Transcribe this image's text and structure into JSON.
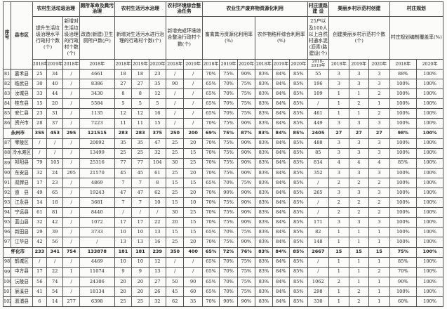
{
  "header": {
    "seq": "序号",
    "county": "县市区",
    "groups": [
      {
        "label": "农村生活垃圾治理"
      },
      {
        "label": "厕所革命及粪污治理"
      },
      {
        "label": "农村生活污水治理"
      },
      {
        "label": "农村环境综合整治任务"
      },
      {
        "label": "农业生产废弃物资源化利用"
      },
      {
        "label": "村庄道路建 设"
      },
      {
        "label": "美丽乡村示范村创建"
      },
      {
        "label": "村庄规划"
      }
    ],
    "subs": [
      {
        "label": "提升生活垃圾治理水平行政村个数(个)"
      },
      {
        "label": "新增对生活垃圾治理的行政村个数(个)"
      },
      {
        "label": "改造(新建)卫生厕所户数(户)"
      },
      {
        "label": "新增对生活污水进行治理的行政村个数(个)"
      },
      {
        "label": "新增完成环境综合整治行政村个数(个)"
      },
      {
        "label": "畜禽粪污资源化利用率(%)"
      },
      {
        "label": "农作物秸秆综合利用率(%)"
      },
      {
        "label": "25户以及100人以上自然村通水泥(沥青)路建设(个)"
      },
      {
        "label": "创建美丽乡村示范村个数(个)"
      },
      {
        "label": "村庄规划编制覆盖率(%)"
      }
    ],
    "years": [
      "2018年",
      "2019年",
      "2018年",
      "2018年",
      "2018年",
      "2019年",
      "2020年",
      "2018年",
      "2019年",
      "2018年",
      "2019年",
      "2020年",
      "2018年",
      "2019年",
      "2020年",
      "2018–2019年",
      "2018年",
      "2019年",
      "2020年",
      "2018年",
      "2020年"
    ]
  },
  "rows": [
    {
      "seq": "81",
      "name": "嘉禾县",
      "total": false,
      "v": [
        "25",
        "34",
        "/",
        "4661",
        "18",
        "18",
        "23",
        "/",
        "/",
        "70%",
        "75%",
        "90%",
        "83%",
        "84%",
        "85%",
        "55",
        "3",
        "3",
        "3",
        "88%",
        "100%"
      ]
    },
    {
      "seq": "82",
      "name": "临武县",
      "total": false,
      "v": [
        "30",
        "40",
        "/",
        "8386",
        "27",
        "27",
        "35",
        "90",
        "/",
        "65%",
        "70%",
        "75%",
        "83%",
        "84%",
        "85%",
        "196",
        "3",
        "3",
        "3",
        "100%",
        "100%"
      ]
    },
    {
      "seq": "83",
      "name": "汝城县",
      "total": false,
      "v": [
        "33",
        "44",
        "/",
        "3430",
        "8",
        "8",
        "12",
        "/",
        "/",
        "65%",
        "70%",
        "75%",
        "83%",
        "84%",
        "85%",
        "109",
        "1",
        "1",
        "2",
        "100%",
        "100%"
      ]
    },
    {
      "seq": "84",
      "name": "桂东县",
      "total": false,
      "v": [
        "15",
        "20",
        "/",
        "5584",
        "5",
        "5",
        "5",
        "/",
        "/",
        "65%",
        "70%",
        "75%",
        "83%",
        "84%",
        "85%",
        "/",
        "1",
        "2",
        "1",
        "100%",
        "100%"
      ]
    },
    {
      "seq": "85",
      "name": "安仁县",
      "total": false,
      "v": [
        "23",
        "31",
        "/",
        "1135",
        "12",
        "12",
        "16",
        "/",
        "/",
        "65%",
        "70%",
        "75%",
        "83%",
        "84%",
        "85%",
        "461",
        "1",
        "1",
        "2",
        "100%",
        "100%"
      ]
    },
    {
      "seq": "86",
      "name": "资兴市",
      "total": false,
      "v": [
        "28",
        "37",
        "/",
        "7223",
        "11",
        "11",
        "15",
        "/",
        "/",
        "70%",
        "75%",
        "90%",
        "83%",
        "84%",
        "85%",
        "449",
        "3",
        "3",
        "3",
        "100%",
        "100%"
      ]
    },
    {
      "seq": "",
      "name": "永州市",
      "total": true,
      "v": [
        "355",
        "453",
        "295",
        "121515",
        "283",
        "283",
        "375",
        "250",
        "200",
        "69%",
        "75%",
        "87%",
        "83%",
        "84%",
        "85%",
        "2405",
        "27",
        "27",
        "27",
        "98%",
        "100%"
      ]
    },
    {
      "seq": "87",
      "name": "零陵区",
      "total": false,
      "v": [
        "/",
        "/",
        "/",
        "20092",
        "35",
        "35",
        "47",
        "25",
        "20",
        "70%",
        "75%",
        "90%",
        "83%",
        "84%",
        "85%",
        "488",
        "3",
        "3",
        "3",
        "100%",
        "100%"
      ]
    },
    {
      "seq": "88",
      "name": "冷水滩区",
      "total": false,
      "v": [
        "/",
        "/",
        "/",
        "13499",
        "25",
        "25",
        "32",
        "25",
        "15",
        "70%",
        "75%",
        "90%",
        "83%",
        "84%",
        "85%",
        "85",
        "3",
        "3",
        "3",
        "100%",
        "100%"
      ]
    },
    {
      "seq": "89",
      "name": "祁阳县",
      "total": false,
      "v": [
        "79",
        "105",
        "/",
        "25316",
        "77",
        "77",
        "104",
        "30",
        "25",
        "70%",
        "75%",
        "90%",
        "83%",
        "84%",
        "85%",
        "814",
        "4",
        "4",
        "4",
        "85%",
        "100%"
      ]
    },
    {
      "seq": "90",
      "name": "东安县",
      "total": false,
      "v": [
        "32",
        "24",
        "295",
        "21570",
        "45",
        "45",
        "61",
        "25",
        "20",
        "70%",
        "75%",
        "90%",
        "83%",
        "84%",
        "85%",
        "352",
        "3",
        "3",
        "3",
        "100%",
        "100%"
      ]
    },
    {
      "seq": "91",
      "name": "双牌县",
      "total": false,
      "v": [
        "17",
        "23",
        "/",
        "4869",
        "7",
        "7",
        "8",
        "15",
        "15",
        "65%",
        "70%",
        "75%",
        "83%",
        "84%",
        "85%",
        "/",
        "2",
        "2",
        "2",
        "100%",
        "100%"
      ]
    },
    {
      "seq": "92",
      "name": "道　县",
      "total": false,
      "v": [
        "49",
        "65",
        "/",
        "19243",
        "47",
        "47",
        "62",
        "25",
        "20",
        "70%",
        "90%",
        "90%",
        "83%",
        "84%",
        "85%",
        "265",
        "3",
        "3",
        "3",
        "100%",
        "100%"
      ]
    },
    {
      "seq": "93",
      "name": "江永县",
      "total": false,
      "v": [
        "14",
        "18",
        "/",
        "3681",
        "7",
        "7",
        "10",
        "15",
        "10",
        "70%",
        "75%",
        "90%",
        "83%",
        "84%",
        "85%",
        "/",
        "2",
        "2",
        "2",
        "100%",
        "100%"
      ]
    },
    {
      "seq": "94",
      "name": "宁远县",
      "total": false,
      "v": [
        "61",
        "81",
        "/",
        "8440",
        "/",
        "/",
        "/",
        "30",
        "25",
        "70%",
        "75%",
        "90%",
        "83%",
        "84%",
        "85%",
        "/",
        "2",
        "2",
        "2",
        "100%",
        "100%"
      ]
    },
    {
      "seq": "95",
      "name": "蓝山县",
      "total": false,
      "v": [
        "32",
        "42",
        "/",
        "1072",
        "17",
        "17",
        "22",
        "20",
        "15",
        "70%",
        "75%",
        "90%",
        "83%",
        "84%",
        "85%",
        "171",
        "3",
        "3",
        "3",
        "100%",
        "100%"
      ]
    },
    {
      "seq": "96",
      "name": "新田县",
      "total": false,
      "v": [
        "29",
        "39",
        "/",
        "3733",
        "10",
        "10",
        "13",
        "15",
        "15",
        "65%",
        "70%",
        "75%",
        "83%",
        "84%",
        "85%",
        "82",
        "1",
        "1",
        "1",
        "100%",
        "100%"
      ]
    },
    {
      "seq": "97",
      "name": "江华县",
      "total": false,
      "v": [
        "42",
        "56",
        "/",
        "/",
        "13",
        "13",
        "16",
        "25",
        "20",
        "70%",
        "75%",
        "90%",
        "83%",
        "84%",
        "85%",
        "148",
        "1",
        "1",
        "1",
        "100%",
        "100%"
      ]
    },
    {
      "seq": "",
      "name": "怀化市",
      "total": true,
      "v": [
        "233",
        "341",
        "754",
        "133878",
        "181",
        "181",
        "239",
        "350",
        "400",
        "65%",
        "72%",
        "76%",
        "83%",
        "84%",
        "85%",
        "2667",
        "15",
        "15",
        "15",
        "75%",
        "100%"
      ]
    },
    {
      "seq": "98",
      "name": "鹤城区",
      "total": false,
      "v": [
        "/",
        "/",
        "/",
        "4469",
        "10",
        "10",
        "12",
        "/",
        "/",
        "65%",
        "70%",
        "75%",
        "83%",
        "84%",
        "85%",
        "/",
        "1",
        "1",
        "1",
        "85%",
        "100%"
      ]
    },
    {
      "seq": "99",
      "name": "中方县",
      "total": false,
      "v": [
        "17",
        "22",
        "1",
        "11074",
        "9",
        "9",
        "13",
        "/",
        "/",
        "65%",
        "70%",
        "75%",
        "83%",
        "84%",
        "85%",
        "/",
        "1",
        "1",
        "2",
        "70%",
        "100%"
      ]
    },
    {
      "seq": "100",
      "name": "沅陵县",
      "total": false,
      "v": [
        "56",
        "74",
        "/",
        "24306",
        "20",
        "20",
        "27",
        "50",
        "90",
        "65%",
        "70%",
        "75%",
        "83%",
        "84%",
        "85%",
        "1062",
        "2",
        "1",
        "1",
        "90%",
        "100%"
      ]
    },
    {
      "seq": "101",
      "name": "辰溪县",
      "total": false,
      "v": [
        "41",
        "54",
        "/",
        "18134",
        "20",
        "20",
        "26",
        "45",
        "60",
        "65%",
        "70%",
        "75%",
        "83%",
        "84%",
        "85%",
        "298",
        "1",
        "2",
        "1",
        "100%",
        "100%"
      ]
    },
    {
      "seq": "102",
      "name": "溆浦县",
      "total": false,
      "v": [
        "6",
        "14",
        "277",
        "6398",
        "25",
        "25",
        "32",
        "62",
        "35",
        "70%",
        "90%",
        "90%",
        "83%",
        "84%",
        "85%",
        "330",
        "1",
        "2",
        "1",
        "60%",
        "100%"
      ]
    }
  ]
}
